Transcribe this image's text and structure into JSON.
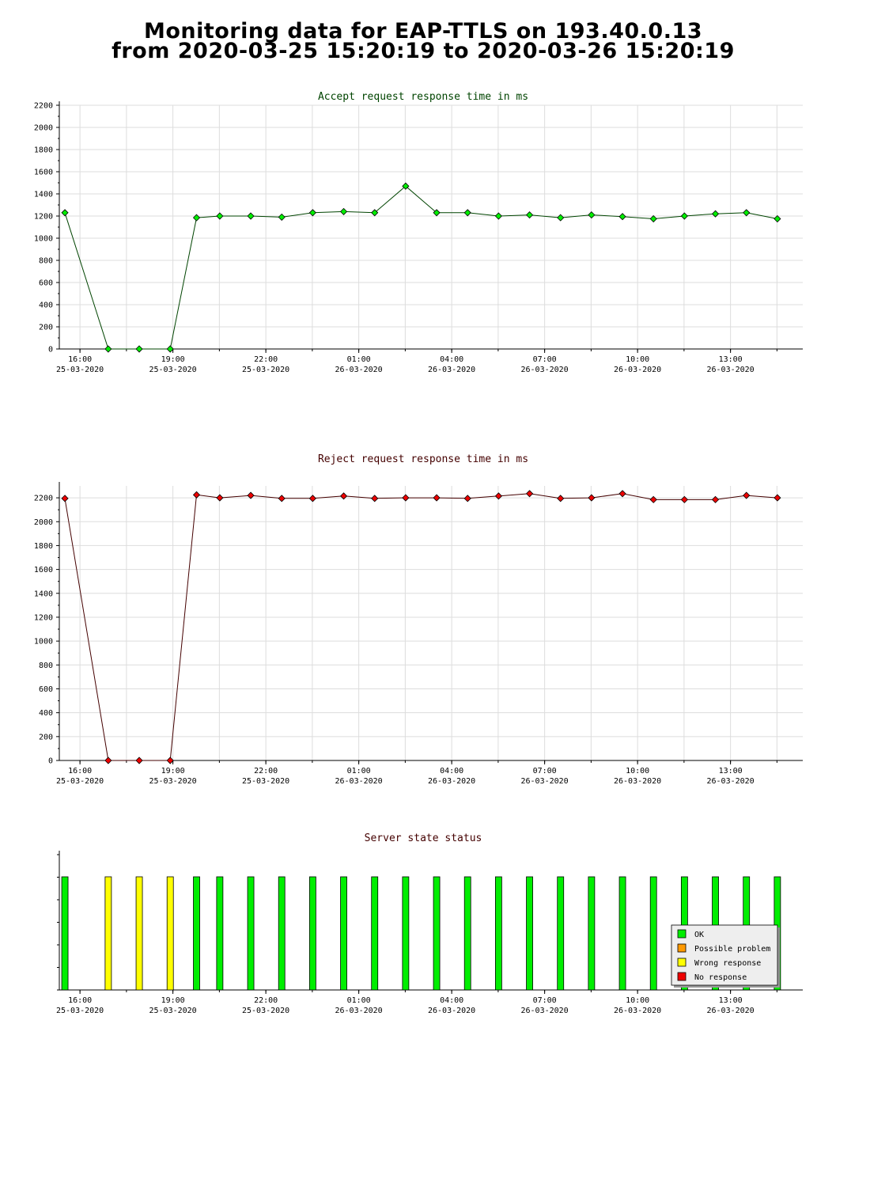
{
  "title_line1": "Monitoring data for EAP-TTLS on 193.40.0.13",
  "title_line2": "from 2020-03-25 15:20:19 to 2020-03-26 15:20:19",
  "x_ticks": [
    {
      "time": "16:00",
      "date": "25-03-2020"
    },
    {
      "time": "19:00",
      "date": "25-03-2020"
    },
    {
      "time": "22:00",
      "date": "25-03-2020"
    },
    {
      "time": "01:00",
      "date": "26-03-2020"
    },
    {
      "time": "04:00",
      "date": "26-03-2020"
    },
    {
      "time": "07:00",
      "date": "26-03-2020"
    },
    {
      "time": "10:00",
      "date": "26-03-2020"
    },
    {
      "time": "13:00",
      "date": "26-03-2020"
    }
  ],
  "x_tick_hours": [
    0.667,
    3.667,
    6.667,
    9.667,
    12.667,
    15.667,
    18.667,
    21.667
  ],
  "x_range_hours": [
    0,
    24
  ],
  "legend": [
    {
      "label": "OK",
      "color": "#00ee00"
    },
    {
      "label": "Possible problem",
      "color": "#ff9900"
    },
    {
      "label": "Wrong response",
      "color": "#ffff00"
    },
    {
      "label": "No response",
      "color": "#ee0000"
    }
  ],
  "chart_data": [
    {
      "type": "line",
      "title": "Accept request response time in ms",
      "ylim": [
        0,
        2200
      ],
      "yticks": [
        0,
        200,
        400,
        600,
        800,
        1000,
        1200,
        1400,
        1600,
        1800,
        2000,
        2200
      ],
      "line_color": "#004400",
      "marker_color": "#00ee00",
      "title_color": "#004400",
      "x": [
        0.18,
        1.58,
        2.58,
        3.58,
        4.43,
        5.18,
        6.18,
        7.18,
        8.18,
        9.18,
        10.18,
        11.18,
        12.18,
        13.18,
        14.18,
        15.18,
        16.18,
        17.18,
        18.18,
        19.18,
        20.18,
        21.18,
        22.18,
        23.18
      ],
      "y": [
        1230,
        0,
        0,
        0,
        1185,
        1200,
        1200,
        1190,
        1230,
        1240,
        1230,
        1470,
        1230,
        1230,
        1200,
        1210,
        1185,
        1210,
        1195,
        1175,
        1200,
        1220,
        1230,
        1175
      ]
    },
    {
      "type": "line",
      "title": "Reject request response time in ms",
      "ylim": [
        0,
        2300
      ],
      "yticks": [
        0,
        200,
        400,
        600,
        800,
        1000,
        1200,
        1400,
        1600,
        1800,
        2000,
        2200
      ],
      "line_color": "#440000",
      "marker_color": "#ee0000",
      "title_color": "#440000",
      "x": [
        0.18,
        1.58,
        2.58,
        3.58,
        4.43,
        5.18,
        6.18,
        7.18,
        8.18,
        9.18,
        10.18,
        11.18,
        12.18,
        13.18,
        14.18,
        15.18,
        16.18,
        17.18,
        18.18,
        19.18,
        20.18,
        21.18,
        22.18,
        23.18
      ],
      "y": [
        2195,
        0,
        0,
        0,
        2225,
        2200,
        2220,
        2195,
        2195,
        2215,
        2195,
        2200,
        2200,
        2195,
        2215,
        2235,
        2195,
        2200,
        2235,
        2185,
        2185,
        2185,
        2220,
        2200
      ]
    },
    {
      "type": "bar",
      "title": "Server state status",
      "title_color": "#440000",
      "x": [
        0.18,
        1.58,
        2.58,
        3.58,
        4.43,
        5.18,
        6.18,
        7.18,
        8.18,
        9.18,
        10.18,
        11.18,
        12.18,
        13.18,
        14.18,
        15.18,
        16.18,
        17.18,
        18.18,
        19.18,
        20.18,
        21.18,
        22.18,
        23.18
      ],
      "status": [
        "OK",
        "Wrong response",
        "Wrong response",
        "Wrong response",
        "OK",
        "OK",
        "OK",
        "OK",
        "OK",
        "OK",
        "OK",
        "OK",
        "OK",
        "OK",
        "OK",
        "OK",
        "OK",
        "OK",
        "OK",
        "OK",
        "OK",
        "OK",
        "OK",
        "OK"
      ]
    }
  ]
}
